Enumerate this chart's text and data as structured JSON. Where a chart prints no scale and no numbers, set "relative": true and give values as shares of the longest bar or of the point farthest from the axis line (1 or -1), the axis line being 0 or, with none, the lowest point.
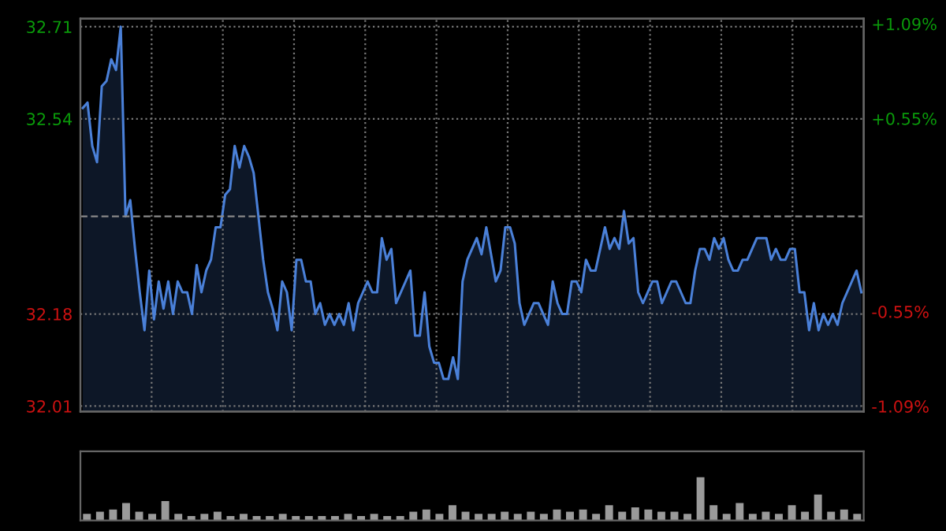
{
  "chart_data": [
    {
      "type": "area",
      "categories": [
        null,
        null,
        null,
        null,
        null,
        null,
        null,
        null,
        null,
        null,
        null,
        null,
        null,
        null,
        null,
        null,
        null,
        null,
        null,
        null,
        null,
        null,
        null,
        null,
        null,
        null,
        null,
        null,
        null,
        null,
        null,
        null,
        null,
        null,
        null,
        null,
        null,
        null,
        null,
        null,
        null,
        null,
        null,
        null,
        null,
        null,
        null,
        null,
        null,
        null,
        null,
        null,
        null,
        null,
        null,
        null,
        null,
        null,
        null,
        null,
        null,
        null,
        null,
        null,
        null,
        null,
        null,
        null,
        null,
        null,
        null,
        null,
        null,
        null,
        null,
        null,
        null,
        null,
        null,
        null,
        null,
        null,
        null,
        null,
        null,
        null,
        null,
        null,
        null,
        null,
        null,
        null,
        null,
        null,
        null,
        null,
        null,
        null,
        null,
        null,
        null,
        null,
        null,
        null,
        null,
        null,
        null,
        null,
        null,
        null,
        null,
        null,
        null,
        null,
        null,
        null,
        null,
        null,
        null,
        null,
        null,
        null,
        null,
        null,
        null,
        null,
        null,
        null,
        null,
        null,
        null,
        null,
        null,
        null,
        null,
        null,
        null,
        null,
        null,
        null,
        null,
        null,
        null,
        null,
        null,
        null,
        null,
        null,
        null,
        null,
        null,
        null,
        null,
        null,
        null,
        null,
        null,
        null,
        null,
        null,
        null,
        null,
        null,
        null,
        null
      ],
      "series": [
        {
          "color": "#4a80d8",
          "values": [
            32.56,
            32.57,
            32.49,
            32.46,
            32.6,
            32.61,
            32.65,
            32.63,
            32.71,
            32.36,
            32.39,
            32.3,
            32.22,
            32.15,
            32.26,
            32.17,
            32.24,
            32.19,
            32.24,
            32.18,
            32.24,
            32.22,
            32.22,
            32.18,
            32.27,
            32.22,
            32.26,
            32.28,
            32.34,
            32.34,
            32.4,
            32.41,
            32.49,
            32.45,
            32.49,
            32.47,
            32.44,
            32.36,
            32.28,
            32.22,
            32.19,
            32.15,
            32.24,
            32.22,
            32.15,
            32.28,
            32.28,
            32.24,
            32.24,
            32.18,
            32.2,
            32.16,
            32.18,
            32.16,
            32.18,
            32.16,
            32.2,
            32.15,
            32.2,
            32.22,
            32.24,
            32.22,
            32.22,
            32.32,
            32.28,
            32.3,
            32.2,
            32.22,
            32.24,
            32.26,
            32.14,
            32.14,
            32.22,
            32.12,
            32.09,
            32.09,
            32.06,
            32.06,
            32.1,
            32.06,
            32.24,
            32.28,
            32.3,
            32.32,
            32.29,
            32.34,
            32.29,
            32.24,
            32.26,
            32.34,
            32.34,
            32.31,
            32.2,
            32.16,
            32.18,
            32.2,
            32.2,
            32.18,
            32.16,
            32.24,
            32.2,
            32.18,
            32.18,
            32.24,
            32.24,
            32.22,
            32.28,
            32.26,
            32.26,
            32.3,
            32.34,
            32.3,
            32.32,
            32.3,
            32.37,
            32.31,
            32.32,
            32.22,
            32.2,
            32.22,
            32.24,
            32.24,
            32.2,
            32.22,
            32.24,
            32.24,
            32.22,
            32.2,
            32.2,
            32.26,
            32.3,
            32.3,
            32.28,
            32.32,
            32.3,
            32.32,
            32.28,
            32.26,
            32.26,
            32.28,
            32.28,
            32.3,
            32.32,
            32.32,
            32.32,
            32.28,
            32.3,
            32.28,
            32.28,
            32.3,
            32.3,
            32.22,
            32.22,
            32.15,
            32.2,
            32.15,
            32.18,
            32.16,
            32.18,
            32.16,
            32.2,
            32.22,
            32.24,
            32.26,
            32.22
          ]
        }
      ],
      "ylim": [
        32.0,
        32.725
      ],
      "yticks": [
        32.01,
        32.18,
        32.54,
        32.71
      ],
      "y2lim": [
        -1.12,
        1.12
      ],
      "y2ticks": [
        {
          "value": 1.09,
          "label": "+1.09%"
        },
        {
          "value": 0.55,
          "label": "+0.55%"
        },
        {
          "value": -0.55,
          "label": "-0.55%"
        },
        {
          "value": -1.09,
          "label": "-1.09%"
        }
      ],
      "ref_lines": [
        {
          "axis": "y",
          "value": 32.36,
          "line_style": "dashed",
          "color": "#888888"
        }
      ],
      "grid": true,
      "tick_labels": "y"
    },
    {
      "type": "bar",
      "relative": true,
      "categories": [
        null,
        null,
        null,
        null,
        null,
        null,
        null,
        null,
        null,
        null,
        null,
        null,
        null,
        null,
        null,
        null,
        null,
        null,
        null,
        null,
        null,
        null,
        null,
        null,
        null,
        null,
        null,
        null,
        null,
        null,
        null,
        null,
        null,
        null,
        null,
        null,
        null,
        null,
        null,
        null,
        null,
        null,
        null,
        null,
        null,
        null,
        null,
        null,
        null,
        null,
        null,
        null,
        null,
        null,
        null,
        null,
        null,
        null,
        null,
        null
      ],
      "color": "#9a9a9a",
      "values": [
        0.15,
        0.2,
        0.25,
        0.4,
        0.2,
        0.15,
        0.45,
        0.15,
        0.1,
        0.15,
        0.2,
        0.1,
        0.15,
        0.1,
        0.1,
        0.15,
        0.1,
        0.1,
        0.1,
        0.1,
        0.15,
        0.1,
        0.15,
        0.1,
        0.1,
        0.2,
        0.25,
        0.15,
        0.35,
        0.2,
        0.15,
        0.15,
        0.2,
        0.15,
        0.2,
        0.15,
        0.25,
        0.2,
        0.25,
        0.15,
        0.35,
        0.2,
        0.3,
        0.25,
        0.2,
        0.2,
        0.15,
        1.0,
        0.35,
        0.15,
        0.4,
        0.15,
        0.2,
        0.15,
        0.35,
        0.2,
        0.6,
        0.2,
        0.25,
        0.15
      ],
      "tick_labels": false
    }
  ]
}
